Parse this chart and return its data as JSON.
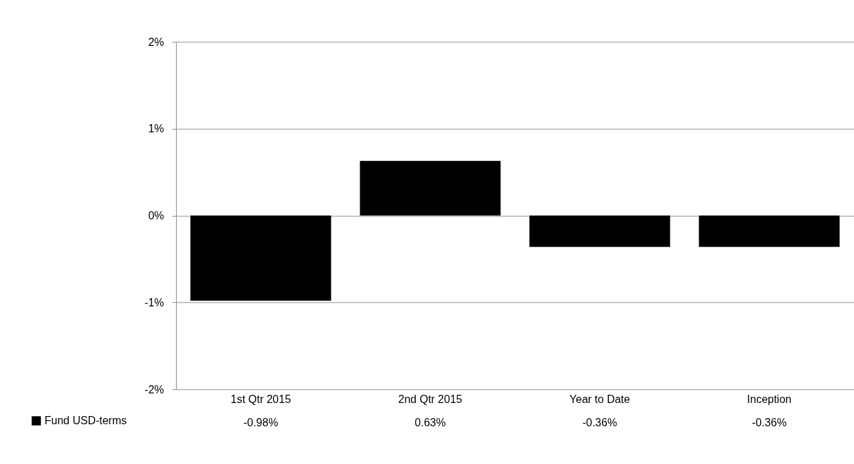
{
  "chart_data": {
    "type": "bar",
    "categories": [
      "1st Qtr 2015",
      "2nd Qtr 2015",
      "Year to Date",
      "Inception"
    ],
    "series": [
      {
        "name": "Fund USD-terms",
        "color": "#000000",
        "values": [
          -0.98,
          0.63,
          -0.36,
          -0.36
        ],
        "value_labels": [
          "-0.98%",
          "0.63%",
          "-0.36%",
          "-0.36%"
        ]
      }
    ],
    "ylim": [
      -2,
      2
    ],
    "yticks": [
      {
        "value": -2,
        "label": "-2%"
      },
      {
        "value": -1,
        "label": "-1%"
      },
      {
        "value": 0,
        "label": "0%"
      },
      {
        "value": 1,
        "label": "1%"
      },
      {
        "value": 2,
        "label": "2%"
      }
    ],
    "grid": "y",
    "legend": "bottom left"
  }
}
